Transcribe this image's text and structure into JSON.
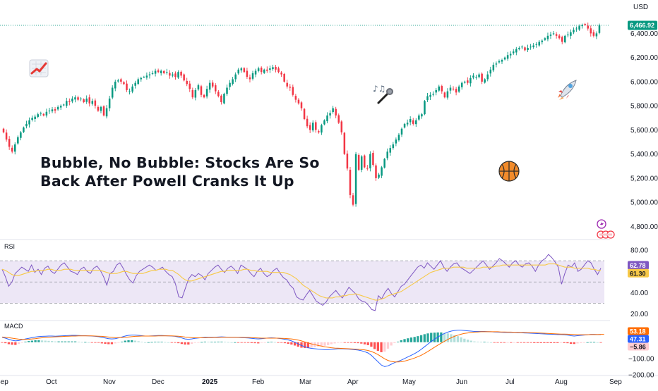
{
  "chart_data": [
    {
      "type": "candlestick",
      "currency": "USD",
      "headline": [
        "Bubble, No Bubble: Stocks Are So",
        "Back After Powell Cranks It Up"
      ],
      "ylim": [
        4750,
        6560
      ],
      "y_ticks": [
        4800,
        5000,
        5200,
        5400,
        5600,
        5800,
        6000,
        6200,
        6400
      ],
      "y_tick_labels": [
        "4,800.00",
        "5,000.00",
        "5,200.00",
        "5,400.00",
        "5,600.00",
        "5,800.00",
        "6,000.00",
        "6,200.00",
        "6,400.00"
      ],
      "x_ticks": [
        "Sep",
        "Oct",
        "Nov",
        "Dec",
        "2025",
        "Feb",
        "Mar",
        "Apr",
        "May",
        "Jun",
        "Jul",
        "Aug",
        "Sep"
      ],
      "last_price": 6466.92,
      "last_price_label": "6,466.92",
      "up_color": "#089981",
      "down_color": "#f23645",
      "closes": [
        5580,
        5520,
        5460,
        5420,
        5480,
        5540,
        5580,
        5620,
        5650,
        5680,
        5700,
        5710,
        5730,
        5740,
        5720,
        5750,
        5760,
        5770,
        5760,
        5790,
        5800,
        5810,
        5840,
        5830,
        5860,
        5870,
        5850,
        5860,
        5830,
        5860,
        5820,
        5840,
        5800,
        5760,
        5790,
        5720,
        5780,
        5860,
        5950,
        6000,
        6010,
        6000,
        5980,
        5930,
        5920,
        5960,
        5990,
        6020,
        6030,
        6040,
        6050,
        6060,
        6070,
        6090,
        6080,
        6090,
        6070,
        6080,
        6050,
        6060,
        6040,
        6080,
        6050,
        6010,
        5980,
        5940,
        5870,
        5930,
        5970,
        5890,
        5870,
        5940,
        5990,
        5960,
        5920,
        5880,
        5830,
        5900,
        5950,
        5990,
        6020,
        6060,
        6100,
        6110,
        6080,
        6040,
        6020,
        6070,
        6090,
        6110,
        6080,
        6100,
        6090,
        6110,
        6120,
        6100,
        6080,
        6060,
        6000,
        5960,
        5950,
        5890,
        5850,
        5820,
        5780,
        5690,
        5630,
        5600,
        5660,
        5600,
        5580,
        5640,
        5680,
        5720,
        5740,
        5780,
        5720,
        5660,
        5580,
        5400,
        5280,
        5060,
        4980,
        5400,
        5270,
        5380,
        5290,
        5280,
        5400,
        5310,
        5200,
        5230,
        5290,
        5360,
        5420,
        5450,
        5480,
        5520,
        5560,
        5610,
        5650,
        5660,
        5690,
        5650,
        5680,
        5720,
        5730,
        5840,
        5880,
        5890,
        5900,
        5930,
        5960,
        5920,
        5870,
        5920,
        5950,
        5940,
        5910,
        5960,
        5990,
        6000,
        5990,
        6030,
        6050,
        6040,
        6060,
        6000,
        6020,
        6060,
        6100,
        6140,
        6150,
        6170,
        6180,
        6200,
        6220,
        6230,
        6250,
        6270,
        6280,
        6290,
        6260,
        6280,
        6290,
        6300,
        6310,
        6330,
        6340,
        6360,
        6380,
        6390,
        6400,
        6380,
        6360,
        6330,
        6380,
        6390,
        6410,
        6430,
        6440,
        6460,
        6470,
        6470,
        6440,
        6400,
        6380,
        6400,
        6467
      ]
    },
    {
      "type": "line",
      "title": "RSI",
      "ylim": [
        15,
        88
      ],
      "y_ticks": [
        20.0,
        40.0,
        60.0,
        80.0
      ],
      "y_tick_labels": [
        "20.00",
        "40.00",
        "60.00",
        "80.00"
      ],
      "levels": [
        70,
        50,
        30
      ],
      "series": [
        {
          "color": "#7e57c2",
          "last_label": "62.78",
          "values": [
            62,
            55,
            46,
            50,
            58,
            61,
            64,
            62,
            60,
            66,
            59,
            62,
            57,
            63,
            65,
            60,
            58,
            62,
            66,
            68,
            64,
            60,
            59,
            57,
            62,
            64,
            60,
            58,
            63,
            65,
            61,
            55,
            47,
            58,
            60,
            66,
            68,
            63,
            57,
            52,
            49,
            56,
            60,
            62,
            64,
            66,
            64,
            61,
            62,
            64,
            60,
            57,
            55,
            48,
            36,
            35,
            44,
            53,
            57,
            55,
            58,
            56,
            52,
            58,
            61,
            64,
            66,
            62,
            59,
            63,
            65,
            62,
            58,
            66,
            64,
            62,
            58,
            55,
            60,
            63,
            58,
            55,
            57,
            61,
            63,
            58,
            54,
            52,
            47,
            44,
            36,
            34,
            33,
            38,
            42,
            37,
            32,
            30,
            28,
            31,
            36,
            39,
            42,
            38,
            35,
            40,
            45,
            42,
            39,
            34,
            32,
            31,
            28,
            24,
            23,
            37,
            34,
            40,
            44,
            39,
            36,
            41,
            46,
            48,
            52,
            56,
            60,
            64,
            66,
            63,
            68,
            65,
            62,
            66,
            70,
            64,
            60,
            64,
            67,
            68,
            64,
            62,
            60,
            58,
            61,
            64,
            67,
            70,
            66,
            62,
            65,
            68,
            72,
            70,
            67,
            64,
            68,
            70,
            66,
            64,
            67,
            68,
            65,
            60,
            66,
            70,
            72,
            76,
            73,
            69,
            64,
            48,
            58,
            66,
            64,
            68,
            60,
            62,
            66,
            70,
            68,
            62,
            57,
            63
          ]
        },
        {
          "color": "#f7c948",
          "last_label": "61.30",
          "values": [
            62,
            61,
            59,
            57,
            56,
            56,
            57,
            58,
            59,
            60,
            60,
            61,
            61,
            61,
            62,
            62,
            61,
            61,
            61,
            62,
            62,
            62,
            61,
            61,
            61,
            61,
            61,
            61,
            61,
            61,
            61,
            60,
            59,
            58,
            58,
            58,
            59,
            60,
            60,
            59,
            58,
            58,
            58,
            58,
            59,
            60,
            61,
            61,
            62,
            62,
            62,
            61,
            61,
            59,
            57,
            54,
            52,
            51,
            51,
            52,
            53,
            54,
            55,
            56,
            57,
            58,
            59,
            60,
            60,
            61,
            61,
            61,
            61,
            61,
            62,
            62,
            61,
            61,
            60,
            60,
            60,
            60,
            59,
            59,
            59,
            59,
            59,
            58,
            57,
            55,
            53,
            50,
            47,
            45,
            43,
            41,
            39,
            37,
            36,
            35,
            35,
            35,
            36,
            36,
            37,
            37,
            38,
            38,
            39,
            38,
            37,
            36,
            35,
            34,
            33,
            33,
            34,
            35,
            37,
            38,
            39,
            40,
            41,
            43,
            45,
            47,
            49,
            51,
            53,
            55,
            57,
            59,
            60,
            61,
            62,
            63,
            63,
            63,
            64,
            64,
            64,
            64,
            63,
            63,
            63,
            63,
            63,
            64,
            64,
            64,
            64,
            65,
            65,
            66,
            66,
            66,
            66,
            66,
            66,
            66,
            66,
            66,
            66,
            66,
            66,
            66,
            66,
            67,
            67,
            67,
            66,
            65,
            64,
            64,
            64,
            63,
            63,
            63,
            63,
            63,
            62,
            62,
            61,
            61
          ]
        }
      ]
    },
    {
      "type": "bar+line",
      "title": "MACD",
      "ylim": [
        -200,
        120
      ],
      "y_ticks": [
        -200,
        -100
      ],
      "y_tick_labels": [
        "−200.00",
        "−100.00"
      ],
      "last_labels": [
        {
          "value": "53.18",
          "color": "#ff6d00"
        },
        {
          "value": "47.31",
          "color": "#2962ff"
        },
        {
          "value": "−5.86",
          "color": "#ffcdd2"
        }
      ],
      "series": [
        {
          "name": "",
          "color": "#2962ff",
          "values": [
            30,
            25,
            18,
            12,
            8,
            10,
            15,
            20,
            24,
            28,
            32,
            35,
            36,
            37,
            38,
            38,
            37,
            38,
            39,
            40,
            41,
            42,
            42,
            41,
            40,
            40,
            39,
            38,
            36,
            34,
            30,
            26,
            22,
            20,
            22,
            26,
            32,
            38,
            42,
            44,
            44,
            42,
            40,
            38,
            38,
            39,
            40,
            41,
            41,
            40,
            39,
            38,
            36,
            32,
            26,
            20,
            18,
            20,
            24,
            26,
            28,
            30,
            30,
            30,
            31,
            32,
            33,
            32,
            31,
            30,
            30,
            29,
            28,
            27,
            26,
            24,
            22,
            20,
            22,
            24,
            26,
            27,
            26,
            24,
            22,
            18,
            14,
            8,
            0,
            -10,
            -20,
            -28,
            -34,
            -38,
            -40,
            -42,
            -44,
            -46,
            -46,
            -44,
            -42,
            -40,
            -40,
            -41,
            -42,
            -44,
            -46,
            -48,
            -52,
            -58,
            -66,
            -80,
            -100,
            -120,
            -140,
            -150,
            -145,
            -135,
            -125,
            -118,
            -110,
            -100,
            -90,
            -80,
            -70,
            -58,
            -44,
            -28,
            -12,
            4,
            18,
            32,
            44,
            54,
            62,
            68,
            72,
            74,
            74,
            72,
            70,
            68,
            66,
            66,
            66,
            66,
            65,
            64,
            63,
            62,
            61,
            60,
            60,
            60,
            60,
            59,
            58,
            57,
            56,
            55,
            54,
            53,
            52,
            51,
            50,
            49,
            48,
            47,
            47,
            46,
            44,
            40,
            38,
            40,
            42,
            44,
            46,
            48,
            48,
            47,
            47
          ]
        },
        {
          "name": "",
          "color": "#ff6d00",
          "values": [
            32,
            30,
            28,
            25,
            22,
            19,
            17,
            17,
            18,
            20,
            22,
            25,
            27,
            29,
            31,
            32,
            33,
            34,
            35,
            36,
            37,
            38,
            38,
            39,
            39,
            39,
            39,
            39,
            38,
            37,
            36,
            34,
            32,
            30,
            28,
            28,
            29,
            30,
            32,
            34,
            36,
            37,
            38,
            38,
            38,
            38,
            38,
            39,
            39,
            39,
            39,
            39,
            38,
            37,
            35,
            32,
            30,
            28,
            27,
            27,
            27,
            27,
            28,
            28,
            29,
            29,
            30,
            30,
            30,
            30,
            30,
            30,
            30,
            29,
            29,
            28,
            27,
            26,
            25,
            25,
            25,
            25,
            25,
            25,
            24,
            23,
            22,
            20,
            17,
            13,
            8,
            2,
            -4,
            -10,
            -15,
            -20,
            -24,
            -28,
            -31,
            -34,
            -36,
            -37,
            -38,
            -39,
            -40,
            -41,
            -42,
            -43,
            -45,
            -47,
            -51,
            -57,
            -65,
            -76,
            -89,
            -102,
            -112,
            -118,
            -121,
            -121,
            -120,
            -116,
            -110,
            -104,
            -97,
            -89,
            -80,
            -69,
            -57,
            -44,
            -31,
            -18,
            -6,
            6,
            17,
            27,
            36,
            43,
            49,
            54,
            57,
            60,
            62,
            63,
            64,
            64,
            64,
            64,
            64,
            64,
            63,
            63,
            62,
            62,
            61,
            61,
            60,
            60,
            59,
            58,
            58,
            57,
            56,
            55,
            54,
            53,
            52,
            51,
            50,
            50,
            49,
            48,
            47,
            46,
            46,
            46,
            46,
            47,
            47,
            47,
            48,
            48
          ]
        }
      ]
    }
  ],
  "icons": {
    "left_badge": "chart-up-icon",
    "mic": "microphone-icon",
    "rocket": "rocket-icon",
    "ball": "basketball-icon",
    "flash": "flash-icon",
    "events": "events-icon"
  },
  "colors": {
    "up": "#089981",
    "down": "#f23645",
    "rsi_band": "#ede7f6",
    "grid_dash": "#9598a1"
  }
}
